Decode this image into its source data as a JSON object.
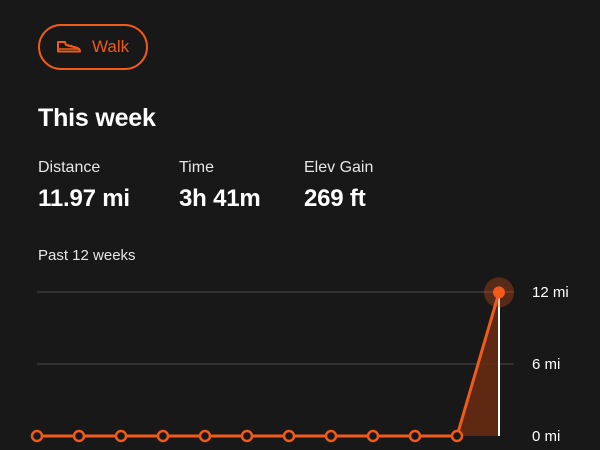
{
  "activity": {
    "label": "Walk",
    "icon": "shoe-icon",
    "accent": "#f05a1a"
  },
  "title": "This week",
  "stats": [
    {
      "label": "Distance",
      "value": "11.97 mi"
    },
    {
      "label": "Time",
      "value": "3h 41m"
    },
    {
      "label": "Elev Gain",
      "value": "269 ft"
    }
  ],
  "chart_subtitle": "Past 12 weeks",
  "chart_data": {
    "type": "line",
    "x": [
      1,
      2,
      3,
      4,
      5,
      6,
      7,
      8,
      9,
      10,
      11,
      12
    ],
    "values": [
      0,
      0,
      0,
      0,
      0,
      0,
      0,
      0,
      0,
      0,
      0,
      11.97
    ],
    "ylim": [
      0,
      12
    ],
    "y_ticks": [
      "0 mi",
      "6 mi",
      "12 mi"
    ],
    "grid": true,
    "color": "#f05a1a"
  }
}
